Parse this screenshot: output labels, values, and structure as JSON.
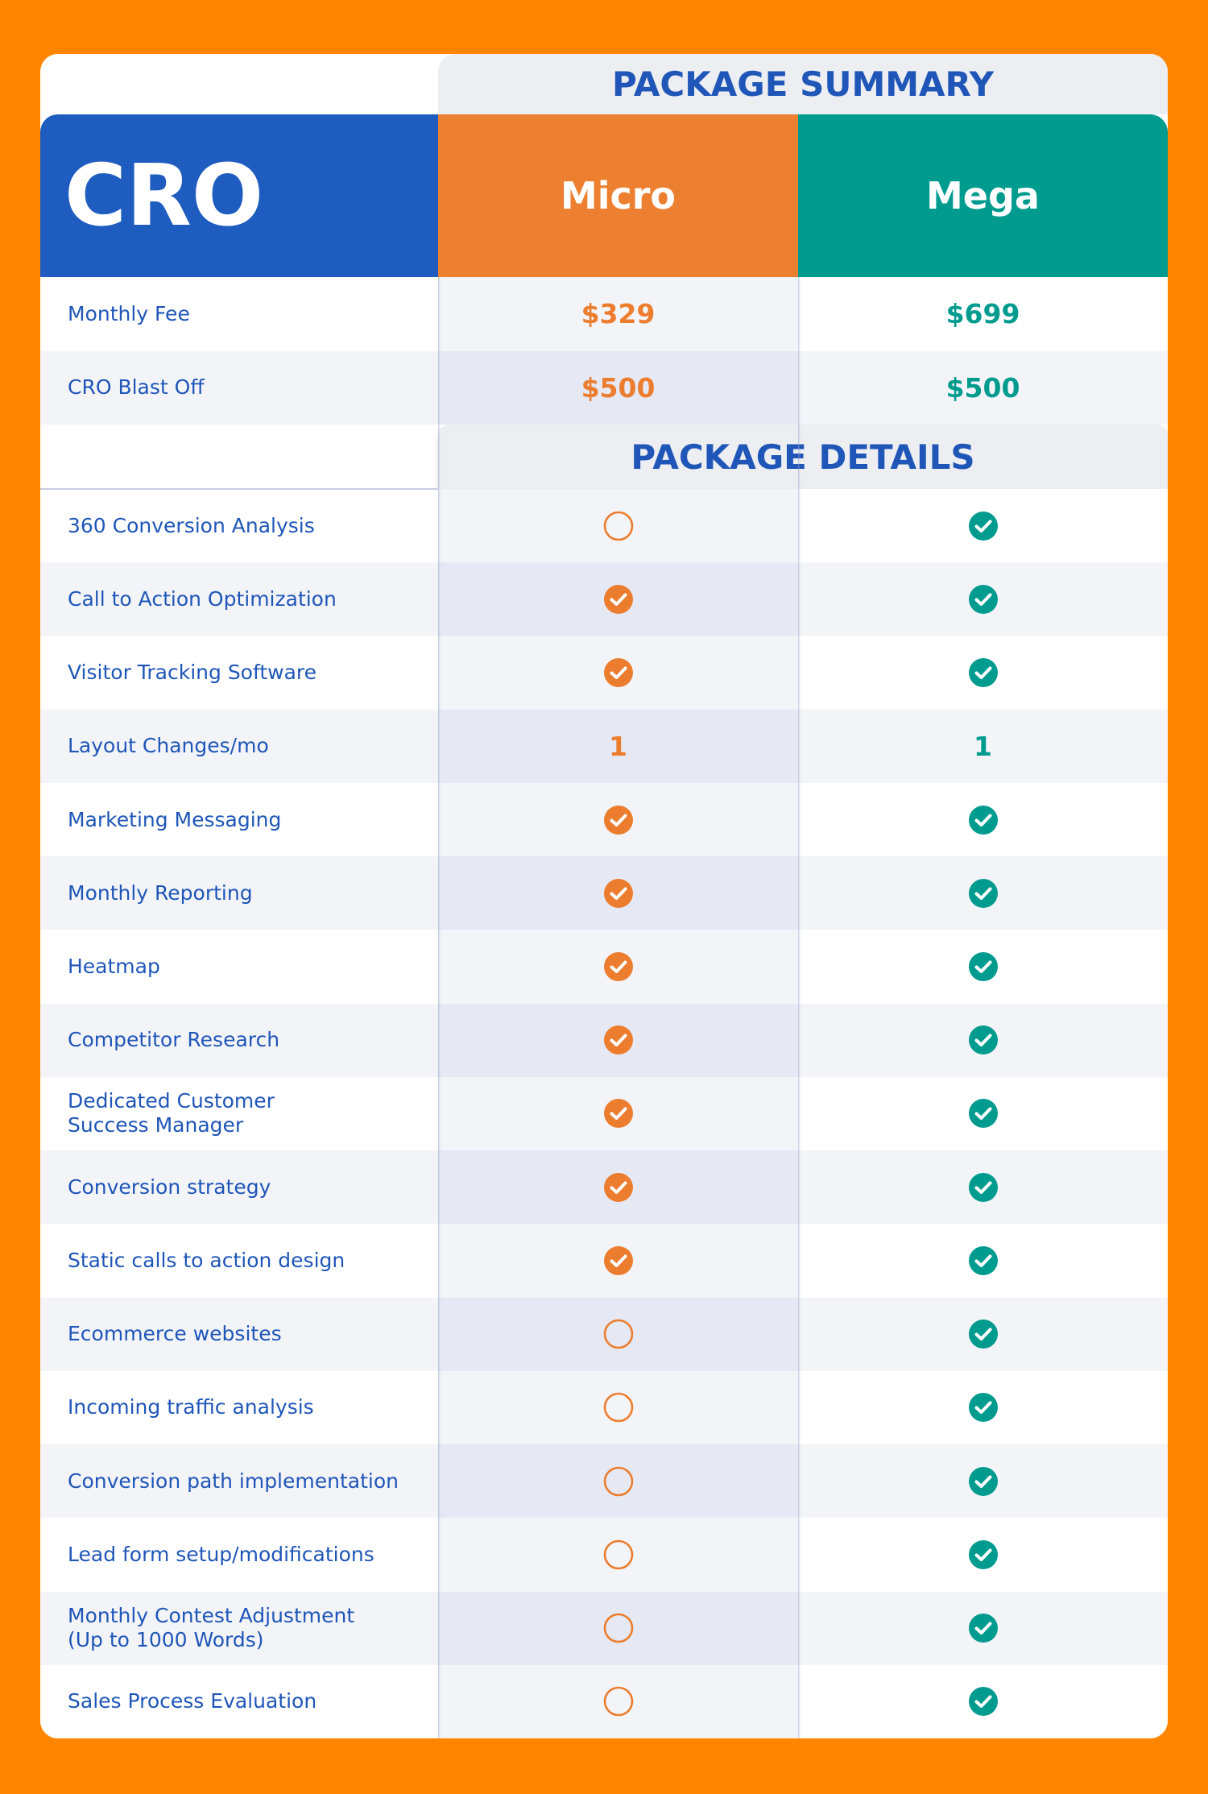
{
  "header": {
    "title": "CRO"
  },
  "columns": [
    "Micro",
    "Mega"
  ],
  "summary": {
    "title": "PACKAGE SUMMARY",
    "rows": [
      {
        "label": "Monthly Fee",
        "values": [
          "$329",
          "$699"
        ]
      },
      {
        "label": "CRO Blast Off",
        "values": [
          "$500",
          "$500"
        ]
      }
    ]
  },
  "details": {
    "title": "PACKAGE DETAILS",
    "rows": [
      {
        "label": "360 Conversion Analysis",
        "values": [
          false,
          true
        ]
      },
      {
        "label": "Call to Action Optimization",
        "values": [
          true,
          true
        ]
      },
      {
        "label": "Visitor Tracking Software",
        "values": [
          true,
          true
        ]
      },
      {
        "label": "Layout Changes/mo",
        "values": [
          "1",
          "1"
        ]
      },
      {
        "label": "Marketing Messaging",
        "values": [
          true,
          true
        ]
      },
      {
        "label": "Monthly Reporting",
        "values": [
          true,
          true
        ]
      },
      {
        "label": "Heatmap",
        "values": [
          true,
          true
        ]
      },
      {
        "label": "Competitor Research",
        "values": [
          true,
          true
        ]
      },
      {
        "label": "Dedicated Customer\nSuccess Manager",
        "values": [
          true,
          true
        ]
      },
      {
        "label": "Conversion strategy",
        "values": [
          true,
          true
        ]
      },
      {
        "label": "Static calls to action design",
        "values": [
          true,
          true
        ]
      },
      {
        "label": "Ecommerce websites",
        "values": [
          false,
          true
        ]
      },
      {
        "label": "Incoming traffic analysis",
        "values": [
          false,
          true
        ]
      },
      {
        "label": "Conversion path implementation",
        "values": [
          false,
          true
        ]
      },
      {
        "label": "Lead form setup/modifications",
        "values": [
          false,
          true
        ]
      },
      {
        "label": "Monthly Contest Adjustment\n(Up to 1000 Words)",
        "values": [
          false,
          true
        ]
      },
      {
        "label": "Sales Process Evaluation",
        "values": [
          false,
          true
        ]
      }
    ]
  }
}
